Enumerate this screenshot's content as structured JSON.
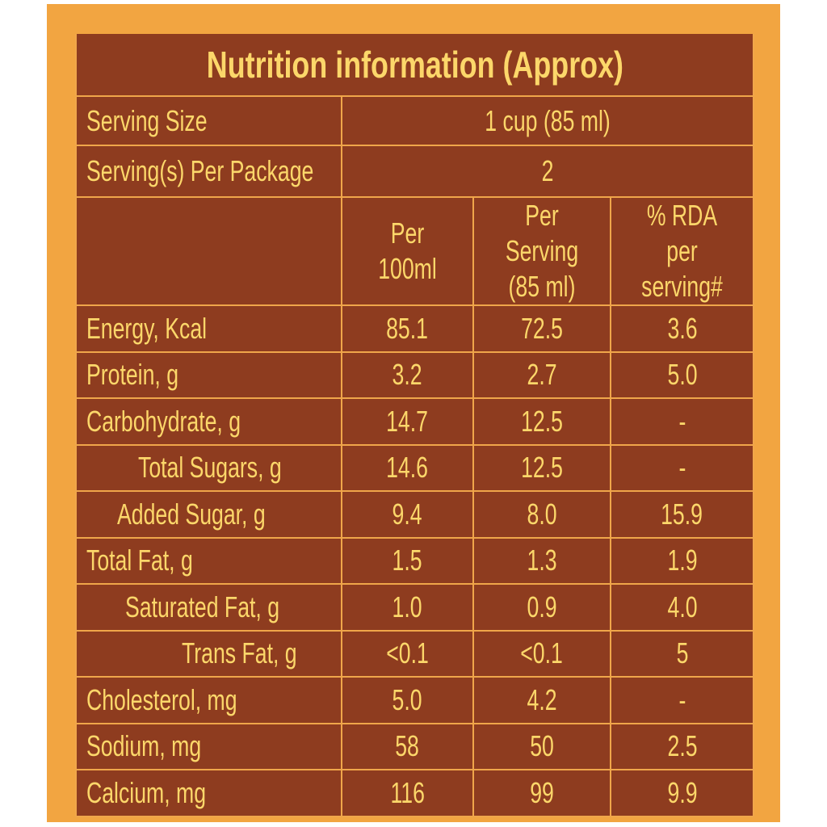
{
  "title": "Nutrition information (Approx)",
  "serving_size": {
    "label": "Serving Size",
    "value": "1 cup (85 ml)"
  },
  "servings_per_package": {
    "label": "Serving(s) Per Package",
    "value": "2"
  },
  "columns": [
    {
      "line1": "Per 100ml",
      "line2": ""
    },
    {
      "line1": "Per Serving",
      "line2": "(85 ml)"
    },
    {
      "line1": "% RDA per",
      "line2": "serving#"
    }
  ],
  "rows": [
    {
      "name": "Energy, Kcal",
      "per100": "85.1",
      "perServing": "72.5",
      "rda": "3.6"
    },
    {
      "name": "Protein, g",
      "per100": "3.2",
      "perServing": "2.7",
      "rda": "5.0"
    },
    {
      "name": "Carbohydrate, g",
      "per100": "14.7",
      "perServing": "12.5",
      "rda": "-"
    },
    {
      "name": "Total Sugars, g",
      "per100": "14.6",
      "perServing": "12.5",
      "rda": "-"
    },
    {
      "name": "Added Sugar, g",
      "per100": "9.4",
      "perServing": "8.0",
      "rda": "15.9"
    },
    {
      "name": "Total Fat, g",
      "per100": "1.5",
      "perServing": "1.3",
      "rda": "1.9"
    },
    {
      "name": "Saturated Fat, g",
      "per100": "1.0",
      "perServing": "0.9",
      "rda": "4.0"
    },
    {
      "name": "Trans Fat, g",
      "per100": "<0.1",
      "perServing": "<0.1",
      "rda": "5"
    },
    {
      "name": "Cholesterol, mg",
      "per100": "5.0",
      "perServing": "4.2",
      "rda": "-"
    },
    {
      "name": "Sodium, mg",
      "per100": "58",
      "perServing": "50",
      "rda": "2.5"
    },
    {
      "name": "Calcium, mg",
      "per100": "116",
      "perServing": "99",
      "rda": "9.9"
    }
  ]
}
